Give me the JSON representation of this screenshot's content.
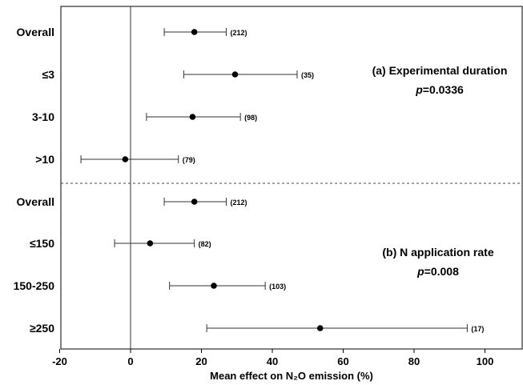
{
  "chart_data": {
    "type": "forest",
    "xlabel": "Mean effect on N₂O emission (%)",
    "xlim": [
      -20,
      110
    ],
    "xticks": [
      -20,
      0,
      20,
      40,
      60,
      80,
      100
    ],
    "reference_line": 0,
    "groups": [
      {
        "title": "(a) Experimental duration",
        "p_label": "p",
        "p_value": "=0.0336",
        "rows": [
          {
            "label": "Overall",
            "mean": 18,
            "lo": 9.5,
            "hi": 27,
            "n": "(212)"
          },
          {
            "label": "≤3",
            "mean": 29.5,
            "lo": 15,
            "hi": 47,
            "n": "(35)"
          },
          {
            "label": "3-10",
            "mean": 17.5,
            "lo": 4.5,
            "hi": 31,
            "n": "(98)"
          },
          {
            "label": ">10",
            "mean": -1.5,
            "lo": -14,
            "hi": 13.5,
            "n": "(79)"
          }
        ]
      },
      {
        "title": "(b) N application rate",
        "p_label": "p",
        "p_value": "=0.008",
        "rows": [
          {
            "label": "Overall",
            "mean": 18,
            "lo": 9.5,
            "hi": 27,
            "n": "(212)"
          },
          {
            "label": "≤150",
            "mean": 5.5,
            "lo": -4.5,
            "hi": 18,
            "n": "(82)"
          },
          {
            "label": "150-250",
            "mean": 23.5,
            "lo": 11,
            "hi": 38,
            "n": "(103)"
          },
          {
            "label": "≥250",
            "mean": 53.5,
            "lo": 21.5,
            "hi": 95,
            "n": "(17)"
          }
        ]
      }
    ]
  }
}
